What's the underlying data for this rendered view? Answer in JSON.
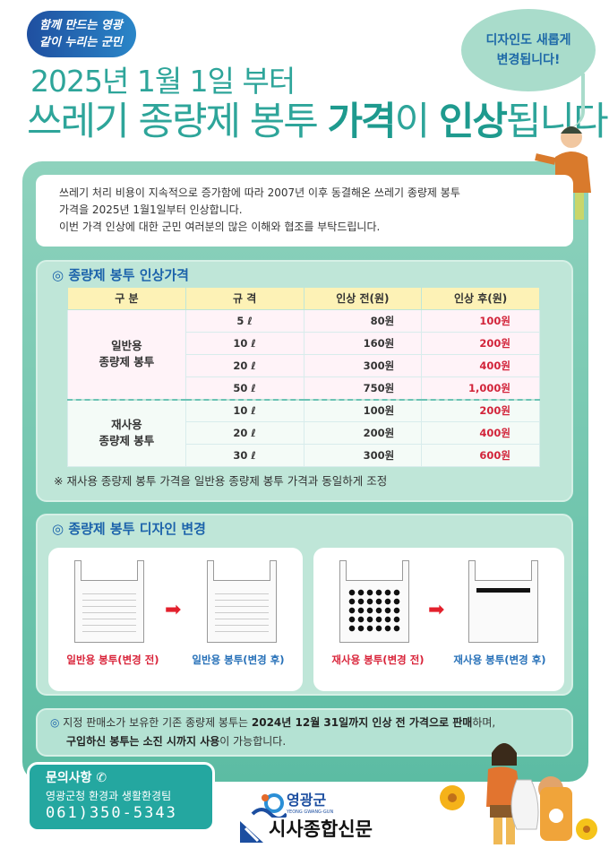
{
  "slogan": {
    "line1": "함께 만드는 영광",
    "line2": "같이 누리는 군민"
  },
  "headline": {
    "line1": "2025년 1월 1일 부터",
    "line2_a": "쓰레기 종량제 봉투 ",
    "line2_b": "가격",
    "line2_c": "이 ",
    "line2_d": "인상",
    "line2_e": "됩니다"
  },
  "bubble": {
    "line1": "디자인도 새롭게",
    "line2": "변경됩니다!"
  },
  "intro": [
    "쓰레기 처리 비용이 지속적으로 증가함에 따라 2007년 이후 동결해온 쓰레기 종량제 봉투",
    "가격을 2025년 1월1일부터 인상합니다.",
    "이번 가격 인상에 대한 군민 여러분의 많은 이해와 협조를 부탁드립니다."
  ],
  "price_section": {
    "title": "종량제 봉투 인상가격",
    "headers": [
      "구 분",
      "규 격",
      "인상 전(원)",
      "인상 후(원)"
    ],
    "general": {
      "label1": "일반용",
      "label2": "종량제 봉투",
      "rows": [
        [
          "5 ℓ",
          "80원",
          "100원"
        ],
        [
          "10 ℓ",
          "160원",
          "200원"
        ],
        [
          "20 ℓ",
          "300원",
          "400원"
        ],
        [
          "50 ℓ",
          "750원",
          "1,000원"
        ]
      ]
    },
    "reusable": {
      "label1": "재사용",
      "label2": "종량제 봉투",
      "rows": [
        [
          "10 ℓ",
          "100원",
          "200원"
        ],
        [
          "20 ℓ",
          "200원",
          "400원"
        ],
        [
          "30 ℓ",
          "300원",
          "600원"
        ]
      ]
    },
    "footnote": "※ 재사용 종량제 봉투 가격을 일반용 종량제 봉투 가격과 동일하게 조정"
  },
  "design_section": {
    "title": "종량제 봉투 디자인 변경",
    "captions": [
      "일반용 봉투(변경 전)",
      "일반용 봉투(변경 후)",
      "재사용 봉투(변경 전)",
      "재사용 봉투(변경 후)"
    ]
  },
  "note": {
    "a": "지정 판매소가 보유한 기존 종량제 봉투는 ",
    "b": "2024년 12월 31일까지 인상 전 가격으로 판매",
    "c": "하며,",
    "d": "구입하신 봉투는 소진 시까지 사용",
    "e": "이 가능합니다."
  },
  "contact": {
    "title": "문의사항",
    "dept": "영광군청 환경과 생활환경팀",
    "phone": "061)350-5343"
  },
  "logo": {
    "name": "영광군",
    "roman": "YEONG GWANG-GUN",
    "publisher": "시사종합신문"
  },
  "colors": {
    "title": "#2ea59a",
    "panel": "#5cbca3",
    "price_up": "#d2243a",
    "section_title": "#1c63ab"
  }
}
